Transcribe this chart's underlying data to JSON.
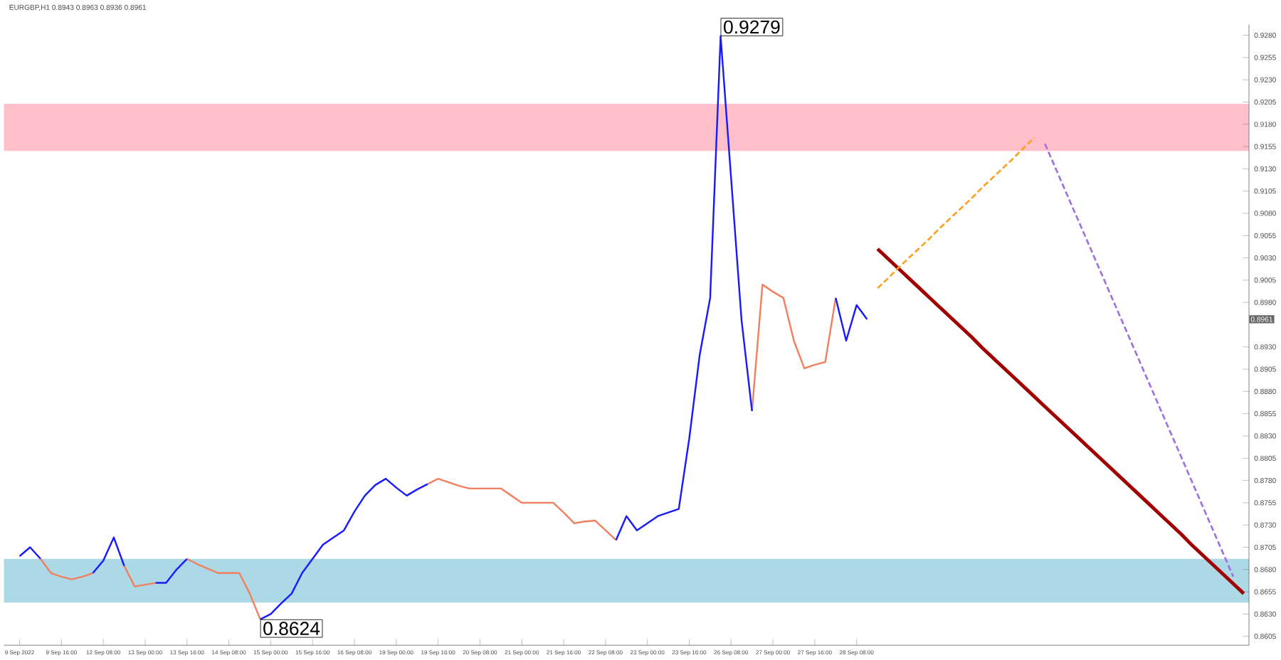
{
  "chart_data": {
    "type": "line",
    "title": "EURGBP,H1  0.8943 0.8963 0.8936 0.8961",
    "categories": [
      null,
      "9 Sep 2022",
      null,
      null,
      null,
      "9 Sep 16:00",
      null,
      null,
      null,
      "12 Sep 08:00",
      null,
      null,
      null,
      "13 Sep 00:00",
      null,
      null,
      null,
      "13 Sep 16:00",
      null,
      null,
      null,
      "14 Sep 08:00",
      null,
      null,
      null,
      "15 Sep 00:00",
      null,
      null,
      null,
      "15 Sep 16:00",
      null,
      null,
      null,
      "16 Sep 08:00",
      null,
      null,
      null,
      "19 Sep 00:00",
      null,
      null,
      null,
      "19 Sep 16:00",
      null,
      null,
      null,
      "20 Sep 08:00",
      null,
      null,
      null,
      "21 Sep 00:00",
      null,
      null,
      null,
      "21 Sep 16:00",
      null,
      null,
      null,
      "22 Sep 08:00",
      null,
      null,
      null,
      "23 Sep 00:00",
      null,
      null,
      null,
      "23 Sep 16:00",
      null,
      null,
      null,
      "26 Sep 08:00",
      null,
      null,
      null,
      "27 Sep 00:00",
      null,
      null,
      null,
      "27 Sep 16:00",
      null,
      null,
      null,
      "28 Sep 08:00",
      null,
      null,
      null,
      null,
      null,
      null,
      null,
      null,
      null,
      null,
      null,
      null,
      null,
      null,
      null,
      null,
      null,
      null,
      null,
      null,
      null,
      null,
      null,
      null,
      null,
      null,
      null,
      null,
      null,
      null,
      null,
      null,
      null,
      null,
      null,
      null,
      null
    ],
    "ylim": [
      0.8595,
      0.9292
    ],
    "yticks": [
      {
        "value": 0.8605,
        "label": "0.8605"
      },
      {
        "value": 0.863,
        "label": "0.8630"
      },
      {
        "value": 0.8655,
        "label": "0.8655"
      },
      {
        "value": 0.868,
        "label": "0.8680"
      },
      {
        "value": 0.8705,
        "label": "0.8705"
      },
      {
        "value": 0.873,
        "label": "0.8730"
      },
      {
        "value": 0.8755,
        "label": "0.8755"
      },
      {
        "value": 0.878,
        "label": "0.8780"
      },
      {
        "value": 0.8805,
        "label": "0.8805"
      },
      {
        "value": 0.883,
        "label": "0.8830"
      },
      {
        "value": 0.8855,
        "label": "0.8855"
      },
      {
        "value": 0.888,
        "label": "0.8880"
      },
      {
        "value": 0.8905,
        "label": "0.8905"
      },
      {
        "value": 0.893,
        "label": "0.8930"
      },
      {
        "value": 0.898,
        "label": "0.8980"
      },
      {
        "value": 0.9005,
        "label": "0.9005"
      },
      {
        "value": 0.903,
        "label": "0.9030"
      },
      {
        "value": 0.9055,
        "label": "0.9055"
      },
      {
        "value": 0.908,
        "label": "0.9080"
      },
      {
        "value": 0.9105,
        "label": "0.9105"
      },
      {
        "value": 0.913,
        "label": "0.9130"
      },
      {
        "value": 0.9155,
        "label": "0.9155"
      },
      {
        "value": 0.918,
        "label": "0.9180"
      },
      {
        "value": 0.9205,
        "label": "0.9205"
      },
      {
        "value": 0.923,
        "label": "0.9230"
      },
      {
        "value": 0.9255,
        "label": "0.9255"
      },
      {
        "value": 0.928,
        "label": "0.9280"
      }
    ],
    "bands": [
      {
        "axis": "y",
        "from": 0.915,
        "to": 0.9203,
        "color": "#ffc0cb"
      },
      {
        "axis": "y",
        "from": 0.8643,
        "to": 0.8692,
        "color": "#add8e6"
      }
    ],
    "series": [
      {
        "color": "#1a1aff",
        "values": [
          null,
          0.8695,
          0.8705,
          0.8692,
          null,
          null,
          null,
          null,
          0.8676,
          0.869,
          0.8716,
          0.8684,
          null,
          null,
          0.8665,
          0.8665,
          0.868,
          0.8692,
          null,
          null,
          null,
          null,
          null,
          null,
          0.8624,
          0.863,
          0.8642,
          0.8653,
          0.8676,
          0.8692,
          0.8708,
          0.8716,
          0.8724,
          0.8745,
          0.8763,
          0.8775,
          0.8782,
          0.8772,
          0.8763,
          0.877,
          0.8776,
          null,
          null,
          null,
          null,
          null,
          null,
          null,
          null,
          null,
          null,
          null,
          null,
          null,
          null,
          null,
          null,
          null,
          0.8713,
          0.874,
          0.8724,
          0.8732,
          0.874,
          0.8744,
          0.8748,
          0.8827,
          0.8921,
          0.8985,
          0.9279,
          0.912,
          0.896,
          0.8858,
          null,
          null,
          null,
          null,
          null,
          null,
          null,
          0.8985,
          0.8937,
          0.8977,
          0.8961,
          null,
          null,
          null,
          null,
          null,
          null,
          null,
          null,
          null,
          null,
          null,
          null,
          null,
          null,
          null,
          null,
          null,
          null,
          null,
          null,
          null,
          null,
          null,
          null,
          null,
          null,
          null,
          null,
          null,
          null,
          null,
          null,
          null,
          null,
          null,
          null
        ]
      },
      {
        "color": "#f08060",
        "values": [
          null,
          null,
          null,
          0.8692,
          0.8676,
          0.8672,
          0.8669,
          0.8672,
          0.8676,
          null,
          null,
          0.8684,
          0.8661,
          0.8663,
          0.8665,
          null,
          null,
          0.8692,
          0.8686,
          0.8681,
          0.8676,
          0.8676,
          0.8676,
          0.8653,
          0.8624,
          null,
          null,
          null,
          null,
          null,
          null,
          null,
          null,
          null,
          null,
          null,
          null,
          null,
          null,
          null,
          0.8776,
          0.8782,
          0.8778,
          0.8774,
          0.8771,
          0.8771,
          0.8771,
          0.8771,
          0.8763,
          0.8755,
          0.8755,
          0.8755,
          0.8755,
          0.8744,
          0.8732,
          0.8734,
          0.8735,
          0.8724,
          0.8713,
          null,
          null,
          null,
          null,
          null,
          null,
          null,
          null,
          null,
          null,
          null,
          null,
          0.8858,
          0.9,
          0.8992,
          0.8985,
          0.8937,
          0.8906,
          0.891,
          0.8913,
          0.8985,
          null,
          null,
          null,
          null,
          null,
          null,
          null,
          null,
          null,
          null,
          null,
          null,
          null,
          null,
          null,
          null,
          null,
          null,
          null,
          null,
          null,
          null,
          null,
          null,
          null,
          null,
          null,
          null,
          null,
          null,
          null,
          null,
          null,
          null,
          null,
          null,
          null,
          null,
          null
        ]
      },
      {
        "color": "#ffa020",
        "line_style": "dashed",
        "values": [
          null,
          null,
          null,
          null,
          null,
          null,
          null,
          null,
          null,
          null,
          null,
          null,
          null,
          null,
          null,
          null,
          null,
          null,
          null,
          null,
          null,
          null,
          null,
          null,
          null,
          null,
          null,
          null,
          null,
          null,
          null,
          null,
          null,
          null,
          null,
          null,
          null,
          null,
          null,
          null,
          null,
          null,
          null,
          null,
          null,
          null,
          null,
          null,
          null,
          null,
          null,
          null,
          null,
          null,
          null,
          null,
          null,
          null,
          null,
          null,
          null,
          null,
          null,
          null,
          null,
          null,
          null,
          null,
          null,
          null,
          null,
          null,
          null,
          null,
          null,
          null,
          null,
          null,
          null,
          null,
          null,
          null,
          null,
          0.8996,
          0.9007,
          0.9019,
          0.903,
          0.9041,
          0.9052,
          0.9064,
          0.9075,
          0.9086,
          0.9097,
          0.9109,
          0.912,
          0.9131,
          0.9142,
          0.9154,
          0.9165,
          null,
          null,
          null,
          null,
          null,
          null,
          null,
          null,
          null,
          null,
          null,
          null,
          null,
          null,
          null,
          null,
          null,
          null,
          null,
          null
        ]
      },
      {
        "color": "#a070e0",
        "line_style": "dashed",
        "values": [
          null,
          null,
          null,
          null,
          null,
          null,
          null,
          null,
          null,
          null,
          null,
          null,
          null,
          null,
          null,
          null,
          null,
          null,
          null,
          null,
          null,
          null,
          null,
          null,
          null,
          null,
          null,
          null,
          null,
          null,
          null,
          null,
          null,
          null,
          null,
          null,
          null,
          null,
          null,
          null,
          null,
          null,
          null,
          null,
          null,
          null,
          null,
          null,
          null,
          null,
          null,
          null,
          null,
          null,
          null,
          null,
          null,
          null,
          null,
          null,
          null,
          null,
          null,
          null,
          null,
          null,
          null,
          null,
          null,
          null,
          null,
          null,
          null,
          null,
          null,
          null,
          null,
          null,
          null,
          null,
          null,
          null,
          null,
          null,
          null,
          null,
          null,
          null,
          null,
          null,
          null,
          null,
          null,
          null,
          null,
          null,
          null,
          null,
          null,
          0.9158,
          0.9131,
          0.9104,
          0.9077,
          0.905,
          0.9023,
          0.8996,
          0.8969,
          0.8942,
          0.8915,
          0.8888,
          0.8861,
          0.8834,
          0.8807,
          0.878,
          0.8753,
          0.8726,
          0.8699,
          0.8672,
          null
        ]
      },
      {
        "color": "#a00000",
        "line_style": "solid",
        "values": [
          null,
          null,
          null,
          null,
          null,
          null,
          null,
          null,
          null,
          null,
          null,
          null,
          null,
          null,
          null,
          null,
          null,
          null,
          null,
          null,
          null,
          null,
          null,
          null,
          null,
          null,
          null,
          null,
          null,
          null,
          null,
          null,
          null,
          null,
          null,
          null,
          null,
          null,
          null,
          null,
          null,
          null,
          null,
          null,
          null,
          null,
          null,
          null,
          null,
          null,
          null,
          null,
          null,
          null,
          null,
          null,
          null,
          null,
          null,
          null,
          null,
          null,
          null,
          null,
          null,
          null,
          null,
          null,
          null,
          null,
          null,
          null,
          null,
          null,
          null,
          null,
          null,
          null,
          null,
          null,
          null,
          null,
          null,
          0.904,
          0.9029,
          0.9018,
          0.9007,
          0.8996,
          0.8985,
          0.8974,
          0.8963,
          0.8952,
          0.8941,
          0.8929,
          0.8918,
          0.8907,
          0.8896,
          0.8885,
          0.8874,
          0.8863,
          0.8852,
          0.8841,
          0.883,
          0.8819,
          0.8808,
          0.8797,
          0.8786,
          0.8775,
          0.8764,
          0.8753,
          0.8742,
          0.8731,
          0.872,
          0.8708,
          0.8697,
          0.8686,
          0.8675,
          0.8664,
          0.8653
        ]
      }
    ],
    "annotations": [
      "0.9279",
      "0.8624",
      "0.8961"
    ]
  }
}
